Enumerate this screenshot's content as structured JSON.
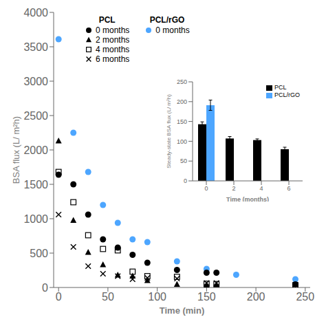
{
  "chart_data": [
    {
      "type": "scatter",
      "xlabel": "Time (min)",
      "ylabel": "BSA flux (L/ m²h)",
      "xlim": [
        -5,
        255
      ],
      "ylim": [
        0,
        4000
      ],
      "xticks": [
        0,
        50,
        100,
        150,
        200,
        250
      ],
      "yticks": [
        0,
        500,
        1000,
        1500,
        2000,
        2500,
        3000,
        3500,
        4000
      ],
      "grid": false,
      "legend": "upper left",
      "annotations": [
        "PCL",
        "PCL/rGO"
      ],
      "series": [
        {
          "name": "0 months",
          "color": "#4da6ff",
          "marker": "circle",
          "x": [
            0,
            15,
            30,
            45,
            60,
            75,
            90,
            120,
            150,
            180,
            240
          ],
          "values": [
            3610,
            2250,
            1680,
            1200,
            940,
            700,
            660,
            380,
            270,
            185,
            120
          ]
        },
        {
          "name": "0 months",
          "color": "black",
          "marker": "circle",
          "x": [
            0,
            15,
            30,
            45,
            60,
            75,
            90,
            120,
            150,
            160,
            240
          ],
          "values": [
            1640,
            1500,
            1060,
            700,
            580,
            475,
            360,
            255,
            215,
            215,
            45
          ]
        },
        {
          "name": "2 months",
          "color": "black",
          "marker": "triangle",
          "x": [
            0,
            15,
            30,
            45,
            60,
            75,
            90,
            120,
            150,
            160
          ],
          "values": [
            2130,
            975,
            510,
            330,
            180,
            165,
            100,
            45,
            35,
            40
          ]
        },
        {
          "name": "4 months",
          "color": "black",
          "marker": "open_square",
          "x": [
            0,
            15,
            30,
            45,
            60,
            75,
            90,
            120,
            150,
            160,
            240
          ],
          "values": [
            1680,
            1240,
            760,
            560,
            540,
            230,
            165,
            155,
            55,
            50,
            30
          ]
        },
        {
          "name": "6 months",
          "color": "black",
          "marker": "x",
          "x": [
            0,
            15,
            30,
            45,
            60,
            75,
            90,
            120,
            150,
            160,
            240
          ],
          "values": [
            1060,
            590,
            310,
            200,
            165,
            120,
            140,
            130,
            65,
            65,
            40
          ]
        }
      ]
    },
    {
      "type": "bar",
      "xlabel": "Time (months)",
      "ylabel": "Steady-state BSA flux (L/ m²h)",
      "categories": [
        0,
        2,
        4,
        6
      ],
      "ylim": [
        0,
        250
      ],
      "yticks": [
        0,
        50,
        100,
        150,
        200,
        250
      ],
      "grid": false,
      "legend": "upper right",
      "series": [
        {
          "name": "PCL",
          "color": "black",
          "values": [
            143,
            107,
            103,
            80
          ],
          "errors": [
            6,
            5,
            3,
            5
          ]
        },
        {
          "name": "PCL/rGO",
          "color": "#4da6ff",
          "values": [
            191,
            null,
            null,
            null
          ],
          "errors": [
            13,
            null,
            null,
            null
          ]
        }
      ]
    }
  ]
}
